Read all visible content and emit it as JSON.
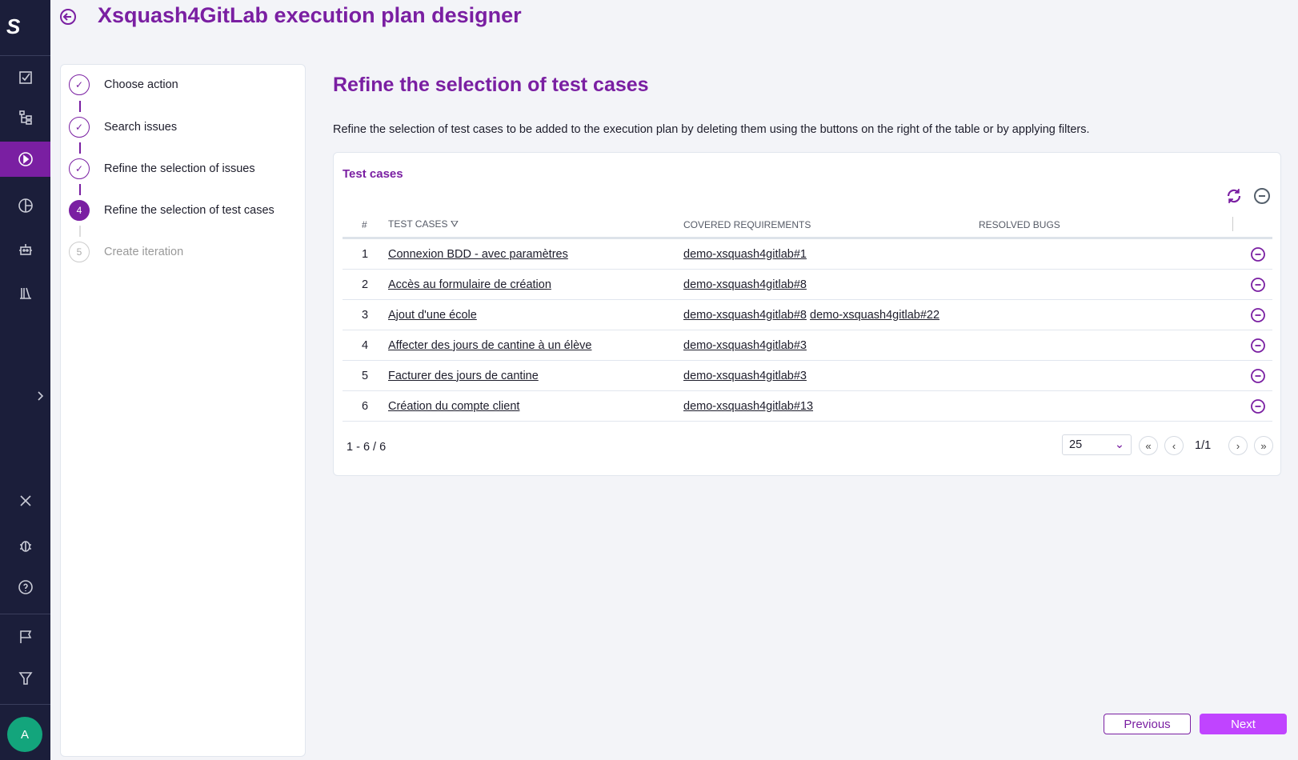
{
  "app": {
    "title": "Xsquash4GitLab execution plan designer",
    "logo": "S",
    "user_initial": "A"
  },
  "colors": {
    "brand": "#7a1fa2",
    "sidebar": "#1b1e3a",
    "next_button": "#c044ff",
    "avatar": "#13a57c"
  },
  "sidebar": {
    "items": [
      {
        "icon": "requirements-icon"
      },
      {
        "icon": "test-cases-tree-icon"
      },
      {
        "icon": "campaign-play-icon",
        "active": true
      },
      {
        "icon": "reports-pie-icon"
      },
      {
        "icon": "automation-robot-icon"
      },
      {
        "icon": "library-icon"
      },
      {
        "icon": "expand-chevron-icon"
      },
      {
        "icon": "tools-icon"
      },
      {
        "icon": "bug-icon"
      },
      {
        "icon": "help-icon"
      },
      {
        "icon": "milestone-flag-icon"
      },
      {
        "icon": "filter-icon"
      }
    ]
  },
  "steps": [
    {
      "label": "Choose action",
      "state": "done"
    },
    {
      "label": "Search issues",
      "state": "done"
    },
    {
      "label": "Refine the selection of issues",
      "state": "done"
    },
    {
      "label": "Refine the selection of test cases",
      "state": "current",
      "number": "4"
    },
    {
      "label": "Create iteration",
      "state": "disabled",
      "number": "5"
    }
  ],
  "main": {
    "heading": "Refine the selection of test cases",
    "description": "Refine the selection of test cases to be added to the execution plan by deleting them using the buttons on the right of the table or by applying filters."
  },
  "table": {
    "title": "Test cases",
    "headers": {
      "num": "#",
      "test_cases": "TEST CASES",
      "covered": "COVERED REQUIREMENTS",
      "bugs": "RESOLVED BUGS"
    },
    "rows": [
      {
        "n": "1",
        "name": "Connexion BDD - avec paramètres",
        "req": [
          "demo-xsquash4gitlab#1"
        ]
      },
      {
        "n": "2",
        "name": "Accès au formulaire de création",
        "req": [
          "demo-xsquash4gitlab#8"
        ]
      },
      {
        "n": "3",
        "name": "Ajout d'une école",
        "req": [
          "demo-xsquash4gitlab#8",
          "demo-xsquash4gitlab#22"
        ]
      },
      {
        "n": "4",
        "name": "Affecter des jours de cantine à un élève",
        "req": [
          "demo-xsquash4gitlab#3"
        ]
      },
      {
        "n": "5",
        "name": "Facturer des jours de cantine",
        "req": [
          "demo-xsquash4gitlab#3"
        ]
      },
      {
        "n": "6",
        "name": "Création du compte client",
        "req": [
          "demo-xsquash4gitlab#13"
        ]
      }
    ],
    "range": "1 - 6 / 6",
    "page_size": "25",
    "page": "1/1"
  },
  "footer": {
    "previous": "Previous",
    "next": "Next"
  }
}
